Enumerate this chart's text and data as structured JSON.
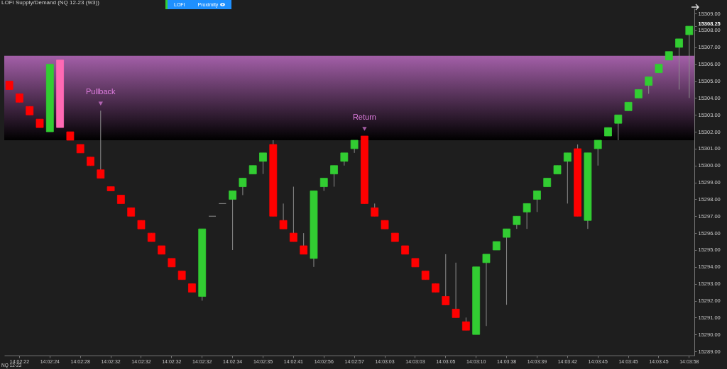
{
  "chart_data": {
    "type": "candlestick",
    "title": "LOFI Supply/Demand (NQ 12-23 (9/3))",
    "categories": [
      null,
      "14:02:22",
      null,
      null,
      "14:02:24",
      null,
      null,
      "14:02:28",
      null,
      null,
      "14:02:32",
      null,
      null,
      "14:02:32",
      null,
      null,
      "14:02:32",
      null,
      null,
      "14:02:32",
      null,
      null,
      "14:02:34",
      null,
      null,
      "14:02:35",
      null,
      null,
      "14:02:41",
      null,
      null,
      "14:02:56",
      null,
      null,
      "14:02:57",
      null,
      null,
      "14:03:03",
      null,
      null,
      "14:03:03",
      null,
      null,
      "14:03:05",
      null,
      null,
      "14:03:10",
      null,
      null,
      "14:03:38",
      null,
      null,
      "14:03:39",
      null,
      null,
      "14:03:42",
      null,
      null,
      "14:03:45",
      null,
      null,
      "14:03:45",
      null,
      null,
      "14:03:45",
      null,
      null,
      "14:03:58"
    ],
    "ohlc": [
      [
        15305.0,
        15305.0,
        15304.5,
        15304.5
      ],
      [
        15304.25,
        15304.25,
        15303.75,
        15303.75
      ],
      [
        15303.5,
        15303.5,
        15303.0,
        15303.0
      ],
      [
        15302.75,
        15302.75,
        15302.25,
        15302.25
      ],
      [
        15302.0,
        15306.0,
        15302.0,
        15306.0
      ],
      [
        15306.25,
        15306.25,
        15302.25,
        15302.25
      ],
      [
        15302.0,
        15302.0,
        15301.5,
        15301.5
      ],
      [
        15301.25,
        15301.25,
        15300.75,
        15300.75
      ],
      [
        15300.5,
        15300.5,
        15300.0,
        15300.0
      ],
      [
        15299.75,
        15303.25,
        15299.25,
        15299.25
      ],
      [
        15298.75,
        15298.75,
        15298.5,
        15298.5
      ],
      [
        15298.25,
        15298.25,
        15297.75,
        15297.75
      ],
      [
        15297.5,
        15297.5,
        15297.0,
        15297.0
      ],
      [
        15296.75,
        15296.75,
        15296.25,
        15296.25
      ],
      [
        15296.0,
        15296.0,
        15295.5,
        15295.5
      ],
      [
        15295.25,
        15295.25,
        15294.75,
        15294.75
      ],
      [
        15294.5,
        15294.5,
        15294.0,
        15294.0
      ],
      [
        15293.75,
        15293.75,
        15293.25,
        15293.25
      ],
      [
        15293.0,
        15293.0,
        15292.5,
        15292.5
      ],
      [
        15292.25,
        15296.25,
        15292.0,
        15296.25
      ],
      [
        15297.0,
        15297.0,
        15297.0,
        15297.0
      ],
      [
        15297.75,
        15297.75,
        15297.75,
        15297.75
      ],
      [
        15298.0,
        15298.5,
        15295.0,
        15298.5
      ],
      [
        15298.75,
        15299.25,
        15298.25,
        15299.25
      ],
      [
        15299.5,
        15300.0,
        15299.5,
        15300.0
      ],
      [
        15300.25,
        15300.75,
        15299.5,
        15300.75
      ],
      [
        15301.25,
        15301.5,
        15297.0,
        15297.0
      ],
      [
        15296.75,
        15297.75,
        15296.25,
        15296.25
      ],
      [
        15296.0,
        15298.75,
        15295.5,
        15295.5
      ],
      [
        15295.25,
        15296.0,
        15294.75,
        15294.75
      ],
      [
        15294.5,
        15298.5,
        15294.0,
        15298.5
      ],
      [
        15298.75,
        15299.25,
        15298.5,
        15299.25
      ],
      [
        15299.5,
        15300.0,
        15298.75,
        15300.0
      ],
      [
        15300.25,
        15300.75,
        15300.0,
        15300.75
      ],
      [
        15301.0,
        15301.5,
        15300.75,
        15301.5
      ],
      [
        15301.75,
        15301.75,
        15297.75,
        15297.75
      ],
      [
        15297.5,
        15297.75,
        15297.0,
        15297.0
      ],
      [
        15296.75,
        15296.75,
        15296.25,
        15296.25
      ],
      [
        15296.0,
        15296.0,
        15295.5,
        15295.5
      ],
      [
        15295.25,
        15295.25,
        15294.75,
        15294.75
      ],
      [
        15294.5,
        15294.5,
        15294.0,
        15294.0
      ],
      [
        15293.75,
        15293.75,
        15293.25,
        15293.25
      ],
      [
        15293.0,
        15293.0,
        15292.5,
        15292.5
      ],
      [
        15292.25,
        15294.75,
        15291.75,
        15291.75
      ],
      [
        15291.5,
        15294.25,
        15291.0,
        15291.0
      ],
      [
        15290.75,
        15291.0,
        15290.25,
        15290.25
      ],
      [
        15290.0,
        15294.0,
        15290.0,
        15294.0
      ],
      [
        15294.25,
        15294.75,
        15290.5,
        15294.75
      ],
      [
        15295.0,
        15295.5,
        15295.0,
        15295.5
      ],
      [
        15295.75,
        15296.25,
        15291.75,
        15296.25
      ],
      [
        15296.5,
        15297.0,
        15296.25,
        15297.0
      ],
      [
        15297.25,
        15297.75,
        15296.25,
        15297.75
      ],
      [
        15298.0,
        15298.5,
        15297.25,
        15298.5
      ],
      [
        15298.75,
        15299.25,
        15298.75,
        15299.25
      ],
      [
        15299.5,
        15300.0,
        15299.5,
        15300.0
      ],
      [
        15300.25,
        15300.75,
        15297.75,
        15300.75
      ],
      [
        15301.0,
        15301.25,
        15297.0,
        15297.0
      ],
      [
        15296.75,
        15300.75,
        15296.25,
        15300.75
      ],
      [
        15301.0,
        15301.5,
        15300.0,
        15301.5
      ],
      [
        15301.75,
        15302.25,
        15301.75,
        15302.25
      ],
      [
        15302.5,
        15303.0,
        15301.5,
        15303.0
      ],
      [
        15303.25,
        15303.75,
        15303.25,
        15303.75
      ],
      [
        15304.0,
        15304.5,
        15304.0,
        15304.5
      ],
      [
        15304.75,
        15305.25,
        15304.25,
        15305.25
      ],
      [
        15305.5,
        15306.0,
        15305.5,
        15306.0
      ],
      [
        15306.25,
        15306.75,
        15306.25,
        15306.75
      ],
      [
        15307.0,
        15307.5,
        15304.5,
        15307.5
      ],
      [
        15307.75,
        15308.25,
        15304.0,
        15308.25
      ]
    ],
    "colors": [
      "#ff0000",
      "#ff0000",
      "#ff0000",
      "#ff0000",
      "#32cd32",
      "#ff69b4",
      "#ff0000",
      "#ff0000",
      "#ff0000",
      "#ff0000",
      "#ff0000",
      "#ff0000",
      "#ff0000",
      "#ff0000",
      "#ff0000",
      "#ff0000",
      "#ff0000",
      "#ff0000",
      "#ff0000",
      "#32cd32",
      "#808080",
      "#808080",
      "#32cd32",
      "#32cd32",
      "#32cd32",
      "#32cd32",
      "#ff0000",
      "#ff0000",
      "#ff0000",
      "#ff0000",
      "#32cd32",
      "#32cd32",
      "#32cd32",
      "#32cd32",
      "#32cd32",
      "#ff0000",
      "#ff0000",
      "#ff0000",
      "#ff0000",
      "#ff0000",
      "#ff0000",
      "#ff0000",
      "#ff0000",
      "#ff0000",
      "#ff0000",
      "#ff0000",
      "#32cd32",
      "#32cd32",
      "#32cd32",
      "#32cd32",
      "#32cd32",
      "#32cd32",
      "#32cd32",
      "#32cd32",
      "#32cd32",
      "#32cd32",
      "#ff0000",
      "#32cd32",
      "#32cd32",
      "#32cd32",
      "#32cd32",
      "#32cd32",
      "#32cd32",
      "#32cd32",
      "#32cd32",
      "#32cd32",
      "#32cd32",
      "#32cd32"
    ],
    "ylim": [
      15288.75,
      15309.3
    ],
    "yticks": [
      {
        "value": 15289,
        "label": "15289.00"
      },
      {
        "value": 15290,
        "label": "15290.00"
      },
      {
        "value": 15291,
        "label": "15291.00"
      },
      {
        "value": 15292,
        "label": "15292.00"
      },
      {
        "value": 15293,
        "label": "15293.00"
      },
      {
        "value": 15294,
        "label": "15294.00"
      },
      {
        "value": 15295,
        "label": "15295.00"
      },
      {
        "value": 15296,
        "label": "15296.00"
      },
      {
        "value": 15297,
        "label": "15297.00"
      },
      {
        "value": 15298,
        "label": "15298.00"
      },
      {
        "value": 15299,
        "label": "15299.00"
      },
      {
        "value": 15300,
        "label": "15300.00"
      },
      {
        "value": 15301,
        "label": "15301.00"
      },
      {
        "value": 15302,
        "label": "15302.00"
      },
      {
        "value": 15303,
        "label": "15303.00"
      },
      {
        "value": 15304,
        "label": "15304.00"
      },
      {
        "value": 15305,
        "label": "15305.00"
      },
      {
        "value": 15306,
        "label": "15306.00"
      },
      {
        "value": 15307,
        "label": "15307.00"
      },
      {
        "value": 15308,
        "label": "15308.00"
      },
      {
        "value": 15308.25,
        "label": "15308.25"
      },
      {
        "value": 15309,
        "label": "15309.00"
      }
    ],
    "bands": [
      {
        "axis": "y",
        "from": 15301.5,
        "to": 15306.5,
        "color": "#a35fa8"
      }
    ],
    "annotations": [
      "LOFI",
      "Proximity",
      "NQ 12-23",
      {
        "text": "Pullback",
        "y": 15303.25
      },
      {
        "text": "Return",
        "y": 15301.75
      }
    ]
  }
}
